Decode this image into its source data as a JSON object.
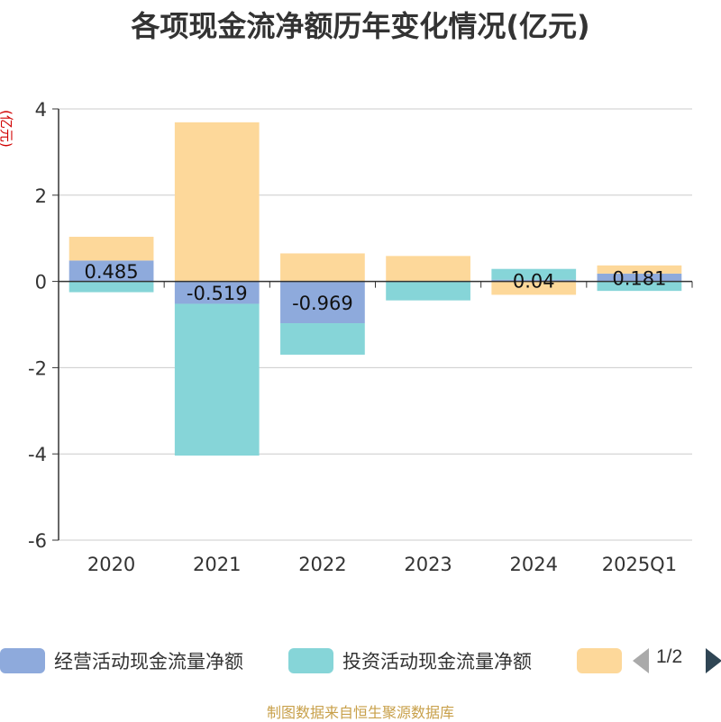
{
  "chart_data": {
    "type": "bar",
    "stacked": true,
    "title": "各项现金流净额历年变化情况(亿元)",
    "ylabel": "(亿元)",
    "categories": [
      "2020",
      "2021",
      "2022",
      "2023",
      "2024",
      "2025Q1"
    ],
    "ylim": [
      -6,
      4
    ],
    "yticks": [
      4,
      2,
      0,
      -2,
      -4,
      -6
    ],
    "grid": true,
    "series": [
      {
        "name": "经营活动现金流量净额",
        "color": "#8eaadc",
        "values": [
          0.485,
          -0.519,
          -0.969,
          0.01,
          0.04,
          0.181
        ],
        "labels": [
          "0.485",
          "-0.519",
          "-0.969",
          "",
          "0.04",
          "0.181"
        ]
      },
      {
        "name": "投资活动现金流量净额",
        "color": "#86d5d8",
        "values": [
          -0.25,
          -3.52,
          -0.73,
          -0.44,
          0.25,
          -0.22
        ]
      },
      {
        "name": "",
        "color": "#fdd89a",
        "values": [
          0.55,
          3.69,
          0.65,
          0.58,
          -0.31,
          0.19
        ]
      }
    ],
    "legend": {
      "position": "bottom",
      "page": "1/2"
    }
  },
  "source_note": "制图数据来自恒生聚源数据库"
}
